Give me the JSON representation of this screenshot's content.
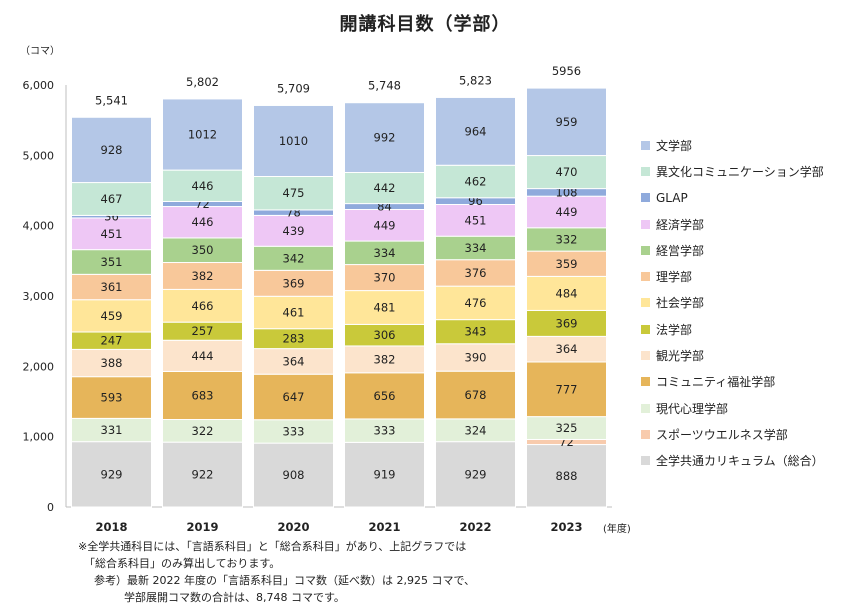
{
  "header": {
    "title": "開講科目数（学部）",
    "y_unit": "（コマ）",
    "x_unit": "(年度)"
  },
  "chart_data": {
    "type": "bar",
    "stacked": true,
    "categories": [
      "2018",
      "2019",
      "2020",
      "2021",
      "2022",
      "2023"
    ],
    "ylim": [
      0,
      6000
    ],
    "yticks": [
      "0",
      "1,000",
      "2,000",
      "3,000",
      "4,000",
      "5,000",
      "6,000"
    ],
    "totals": [
      "5,541",
      "5,802",
      "5,709",
      "5,748",
      "5,823",
      "5956"
    ],
    "legend_position": "right",
    "grid": false,
    "series": [
      {
        "name": "全学共通カリキュラム（総合）",
        "color": "#d9d9d9",
        "values": [
          929,
          922,
          908,
          919,
          929,
          888
        ]
      },
      {
        "name": "スポーツウエルネス学部",
        "color": "#f8cbad",
        "values": [
          null,
          null,
          null,
          null,
          null,
          72
        ]
      },
      {
        "name": "現代心理学部",
        "color": "#e2f0d9",
        "values": [
          331,
          322,
          333,
          333,
          324,
          325
        ]
      },
      {
        "name": "コミュニティ福祉学部",
        "color": "#e6b55a",
        "values": [
          593,
          683,
          647,
          656,
          678,
          777
        ]
      },
      {
        "name": "観光学部",
        "color": "#fce4cc",
        "values": [
          388,
          444,
          364,
          382,
          390,
          364
        ]
      },
      {
        "name": "法学部",
        "color": "#c9c93a",
        "values": [
          247,
          257,
          283,
          306,
          343,
          369
        ]
      },
      {
        "name": "社会学部",
        "color": "#ffe699",
        "values": [
          459,
          466,
          461,
          481,
          476,
          484
        ]
      },
      {
        "name": "理学部",
        "color": "#f8c89a",
        "values": [
          361,
          382,
          369,
          370,
          376,
          359
        ]
      },
      {
        "name": "経営学部",
        "color": "#a9d18e",
        "values": [
          351,
          350,
          342,
          334,
          334,
          332
        ]
      },
      {
        "name": "経済学部",
        "color": "#eec7f5",
        "values": [
          451,
          446,
          439,
          449,
          451,
          449
        ]
      },
      {
        "name": "GLAP",
        "color": "#8faadc",
        "values": [
          36,
          72,
          78,
          84,
          96,
          108
        ]
      },
      {
        "name": "異文化コミュニケーション学部",
        "color": "#c5e7d6",
        "values": [
          467,
          446,
          475,
          442,
          462,
          470
        ]
      },
      {
        "name": "文学部",
        "color": "#b4c7e7",
        "values": [
          928,
          1012,
          1010,
          992,
          964,
          959
        ]
      }
    ]
  },
  "notes": [
    "※全学共通科目には、「言語系科目」と「総合系科目」があり、上記グラフでは",
    "「総合系科目」のみ算出しております。",
    "参考）最新 2022 年度の「言語系科目」コマ数（延べ数）は 2,925 コマで、",
    "学部展開コマ数の合計は、8,748 コマです。"
  ]
}
